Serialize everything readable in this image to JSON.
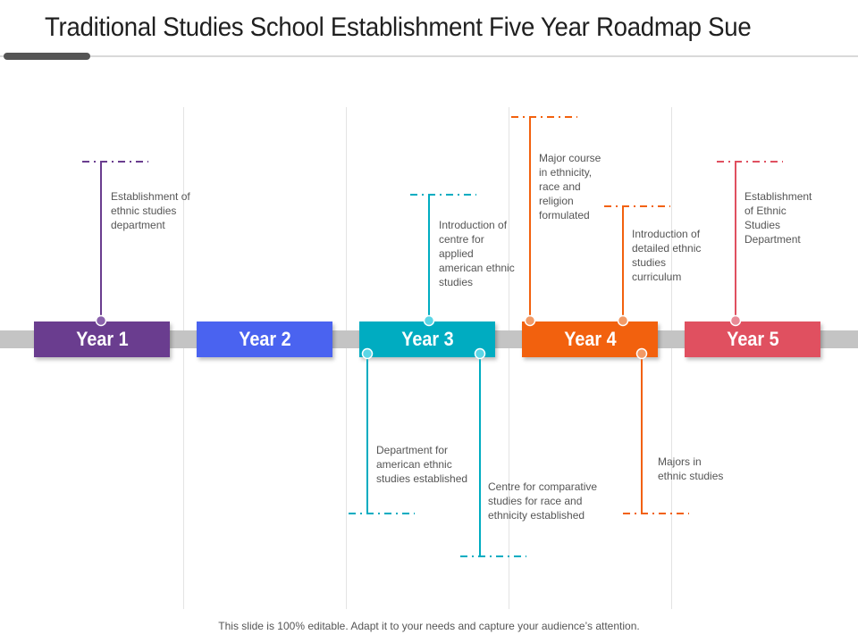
{
  "title": "Traditional Studies School Establishment Five Year Roadmap Sue",
  "footer": "This slide is 100% editable. Adapt it to your needs and capture your audience’s attention.",
  "colors": {
    "year1": "#6a3d8f",
    "year2": "#4a63f0",
    "year3": "#00acc1",
    "year4": "#f2610e",
    "year5": "#e05060",
    "track": "#c4c4c4"
  },
  "years": [
    {
      "label": "Year 1"
    },
    {
      "label": "Year 2"
    },
    {
      "label": "Year 3"
    },
    {
      "label": "Year 4"
    },
    {
      "label": "Year 5"
    }
  ],
  "milestones": {
    "y1_top": "Establishment of ethnic studies department",
    "y3_top": "Introduction of centre for applied american ethnic studies",
    "y3_bottom_left": "Department for american ethnic studies established",
    "y3_bottom_right": "Centre for comparative studies for race and ethnicity established",
    "y4_top_left": "Major course in ethnicity, race and religion formulated",
    "y4_top_right": "Introduction of detailed ethnic studies curriculum",
    "y4_bottom": "Majors in ethnic studies",
    "y5_top": "Establishment of Ethnic Studies Department"
  }
}
